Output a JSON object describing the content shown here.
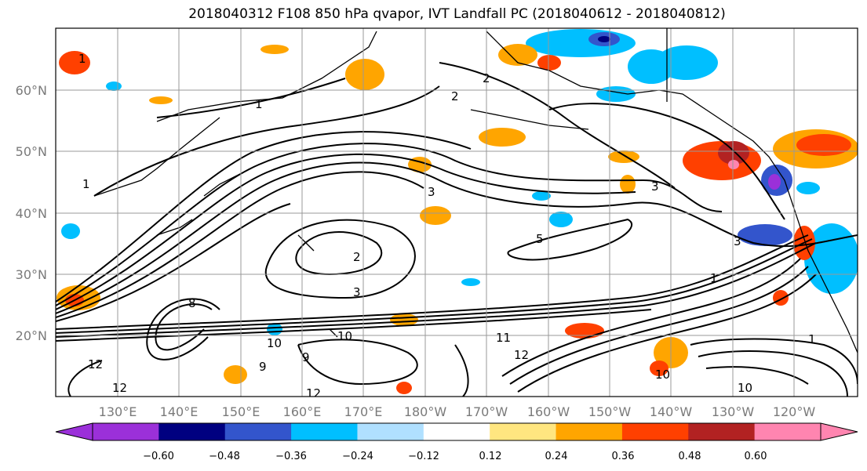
{
  "title": "2018040312 F108 850 hPa qvapor, IVT Landfall PC (2018040612 - 2018040812)",
  "lat_labels": [
    "60°N",
    "50°N",
    "40°N",
    "30°N",
    "20°N"
  ],
  "lon_labels": [
    "130°E",
    "140°E",
    "150°E",
    "160°E",
    "170°E",
    "180°W",
    "170°W",
    "160°W",
    "150°W",
    "140°W",
    "130°W",
    "120°W"
  ],
  "colorbar": {
    "tick_labels": [
      "−0.60",
      "−0.48",
      "−0.36",
      "−0.24",
      "−0.12",
      "0.12",
      "0.24",
      "0.36",
      "0.48",
      "0.60"
    ],
    "colors": [
      "#9b30d9",
      "#000080",
      "#3355cc",
      "#00bfff",
      "#b0e0ff",
      "#ffffff",
      "#ffe680",
      "#ffa500",
      "#ff4000",
      "#b22222",
      "#ff85b0"
    ]
  },
  "contour_labels": [
    "1",
    "1",
    "1",
    "2",
    "2",
    "3",
    "3",
    "3",
    "5",
    "2",
    "3",
    "8",
    "10",
    "11",
    "12",
    "12",
    "9",
    "9",
    "10",
    "10",
    "12",
    "12",
    "10",
    "1",
    "1"
  ]
}
